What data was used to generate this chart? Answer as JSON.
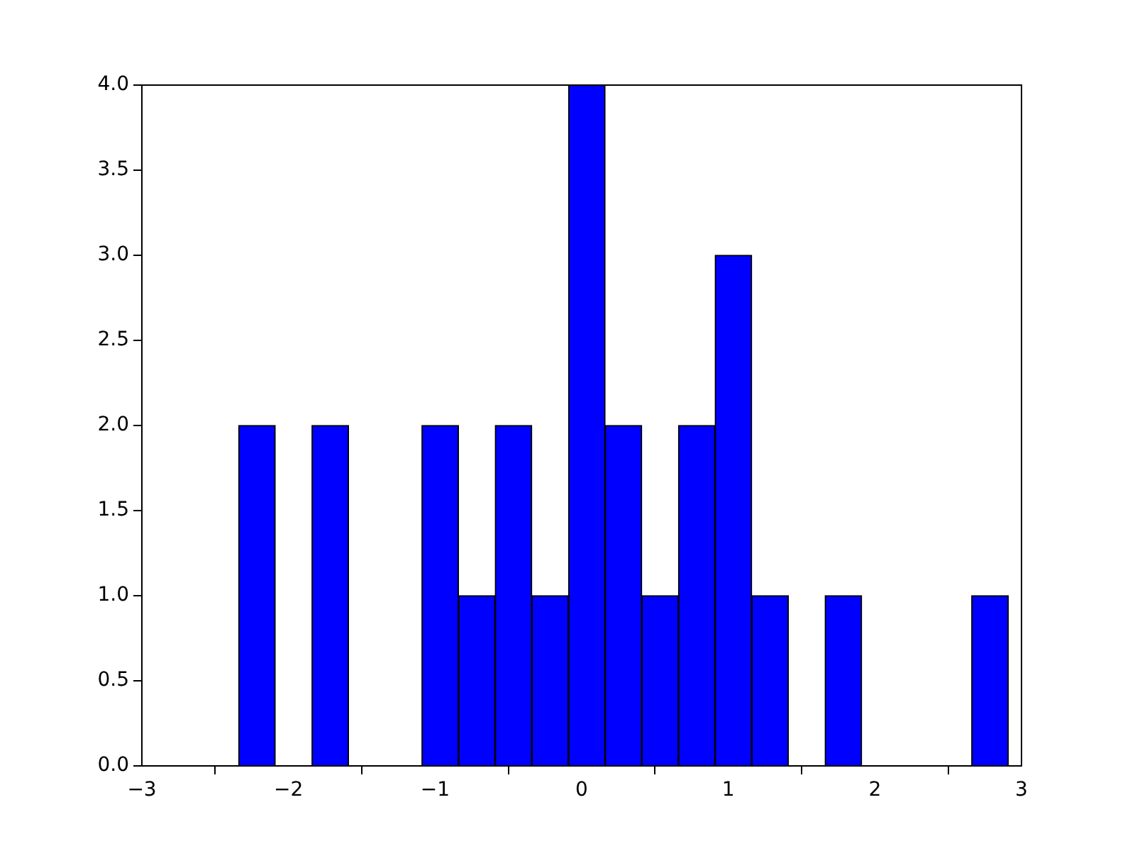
{
  "chart_data": {
    "type": "histogram",
    "bins": [
      -2.34,
      -2.09,
      -1.84,
      -1.59,
      -1.34,
      -1.09,
      -0.84,
      -0.59,
      -0.34,
      -0.09,
      0.16,
      0.41,
      0.66,
      0.91,
      1.16,
      1.41,
      1.66,
      1.91,
      2.16,
      2.41,
      2.66,
      2.91
    ],
    "values": [
      2,
      0,
      2,
      0,
      0,
      2,
      1,
      2,
      1,
      4,
      2,
      1,
      2,
      3,
      1,
      0,
      1,
      0,
      0,
      0,
      1
    ],
    "color": "#0000ff",
    "xlim": [
      -3,
      3
    ],
    "xticks": [
      {
        "value": -3,
        "label": "−3"
      },
      {
        "value": -2,
        "label": "−2"
      },
      {
        "value": -1,
        "label": "−1"
      },
      0,
      1,
      2,
      3
    ],
    "ylim": [
      0,
      4
    ],
    "yticks": [
      {
        "value": 0,
        "label": "0.0"
      },
      0.5,
      {
        "value": 1,
        "label": "1.0"
      },
      1.5,
      {
        "value": 2,
        "label": "2.0"
      },
      2.5,
      {
        "value": 3,
        "label": "3.0"
      },
      3.5,
      {
        "value": 4,
        "label": "4.0"
      }
    ],
    "grid": false
  }
}
